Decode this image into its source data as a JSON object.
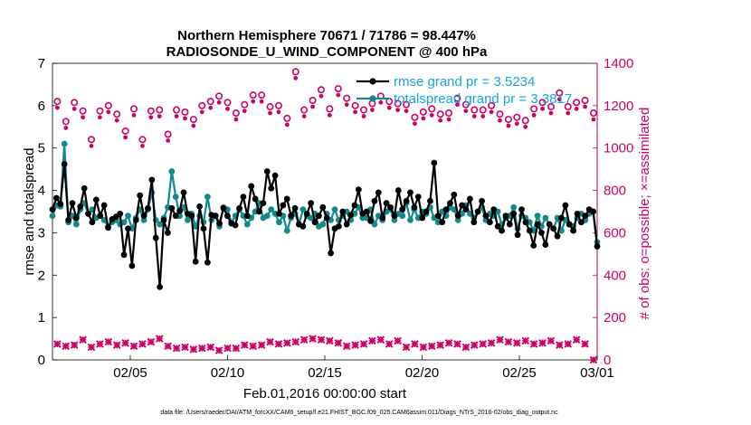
{
  "chart_data": {
    "type": "line",
    "title_line1": "Northern Hemisphere 70671 / 71786 = 98.447%",
    "title_line2": "RADIOSONDE_U_WIND_COMPONENT @ 400 hPa",
    "xlabel": "Feb.01,2016 00:00:00 start",
    "ylabel": "rmse and totalspread",
    "y2label": "# of obs: o=possible; ×=assimilated",
    "footer": "data file: /Users/raeder/DAI/ATM_forcXX/CAM6_setup/f.e21.FHIST_BGC.f09_025.CAM6assim.011/Diags_NTrS_2016-02/obs_diag_output.nc",
    "xlim": [
      0,
      28
    ],
    "ylim": [
      0,
      7
    ],
    "y2lim": [
      0,
      1400
    ],
    "x_ticks": [
      4,
      9,
      14,
      19,
      24,
      28
    ],
    "x_tick_labels": [
      "02/05",
      "02/10",
      "02/15",
      "02/20",
      "02/25",
      "03/01"
    ],
    "y_ticks": [
      "0",
      "1",
      "2",
      "3",
      "4",
      "5",
      "6",
      "7"
    ],
    "y2_ticks": [
      "0",
      "200",
      "400",
      "600",
      "800",
      "1000",
      "1200",
      "1400"
    ],
    "grid": false,
    "legend_position": "top-right",
    "colors": {
      "rmse": "#000000",
      "spread": "#128a8a",
      "obs": "#cc0066",
      "legend_text": "#1aa3e0"
    },
    "series": [
      {
        "name": "rmse grand pr = 3.5234",
        "axis": "left",
        "values": [
          3.55,
          3.82,
          3.68,
          4.62,
          3.3,
          3.7,
          3.35,
          3.62,
          4.05,
          3.45,
          3.25,
          3.78,
          3.4,
          3.65,
          3.12,
          3.32,
          3.38,
          3.45,
          2.48,
          3.1,
          2.22,
          3.3,
          3.88,
          3.4,
          3.58,
          4.25,
          2.88,
          1.72,
          3.3,
          3.0,
          3.58,
          3.4,
          3.52,
          3.95,
          3.45,
          3.4,
          2.32,
          3.62,
          3.1,
          2.3,
          3.42,
          3.4,
          3.22,
          3.58,
          3.4,
          3.22,
          3.18,
          3.58,
          3.85,
          3.4,
          4.1,
          3.8,
          3.5,
          3.7,
          4.45,
          4.05,
          4.35,
          3.45,
          3.65,
          3.8,
          3.4,
          3.58,
          3.2,
          3.15,
          3.45,
          3.7,
          3.25,
          3.4,
          3.6,
          3.35,
          2.52,
          3.1,
          3.15,
          3.5,
          3.2,
          3.42,
          3.65,
          4.02,
          3.45,
          3.5,
          3.28,
          3.75,
          3.95,
          3.35,
          3.7,
          3.6,
          3.4,
          4.0,
          3.55,
          3.75,
          3.95,
          3.6,
          3.85,
          3.35,
          3.5,
          3.75,
          4.65,
          3.4,
          3.25,
          3.55,
          3.7,
          3.9,
          3.4,
          3.65,
          3.55,
          3.8,
          3.25,
          3.5,
          3.75,
          3.4,
          3.25,
          3.55,
          3.15,
          3.05,
          3.4,
          3.2,
          3.45,
          2.95,
          3.55,
          3.25,
          3.05,
          2.7,
          3.2,
          3.0,
          2.72,
          3.2,
          3.1,
          2.92,
          3.35,
          3.65,
          3.2,
          3.05,
          3.45,
          3.25,
          3.4,
          3.55,
          3.5,
          2.68
        ]
      },
      {
        "name": "totalspread grand pr = 3.3817",
        "axis": "left",
        "values": [
          3.4,
          3.65,
          3.62,
          5.1,
          3.25,
          3.4,
          3.2,
          3.55,
          3.7,
          3.45,
          3.55,
          3.35,
          3.4,
          3.3,
          3.15,
          3.25,
          3.3,
          3.2,
          3.25,
          3.4,
          3.1,
          3.35,
          3.55,
          3.3,
          3.55,
          3.95,
          3.3,
          3.2,
          3.35,
          3.6,
          4.45,
          3.85,
          3.4,
          3.6,
          3.3,
          3.45,
          3.15,
          3.4,
          3.25,
          3.85,
          3.3,
          3.4,
          3.15,
          3.6,
          3.55,
          3.25,
          3.4,
          3.55,
          3.4,
          3.2,
          3.35,
          3.5,
          3.7,
          3.35,
          3.4,
          3.55,
          3.45,
          3.25,
          3.4,
          3.05,
          3.35,
          3.45,
          3.2,
          3.55,
          3.4,
          3.35,
          3.45,
          3.15,
          3.2,
          3.45,
          3.3,
          3.55,
          3.3,
          3.4,
          3.5,
          3.3,
          3.45,
          3.6,
          3.35,
          3.35,
          3.55,
          3.2,
          3.4,
          3.3,
          3.5,
          3.55,
          3.3,
          3.45,
          3.4,
          3.7,
          3.3,
          3.55,
          3.35,
          3.5,
          3.45,
          3.6,
          3.35,
          3.25,
          3.5,
          3.4,
          3.6,
          3.55,
          3.3,
          3.45,
          3.65,
          3.45,
          3.35,
          3.5,
          3.6,
          3.3,
          3.45,
          3.4,
          3.5,
          3.2,
          3.35,
          3.4,
          3.6,
          3.1,
          3.4,
          3.35,
          3.25,
          3.05,
          3.4,
          3.15,
          3.35,
          3.2,
          3.1,
          3.35,
          3.05,
          3.3,
          3.2,
          3.15,
          3.35,
          3.45,
          3.3,
          3.45,
          3.5,
          2.78
        ]
      },
      {
        "name": "possible obs",
        "axis": "right",
        "marker": "circle",
        "values": [
          1220,
          1125,
          1215,
          1175,
          1040,
          1175,
          1200,
          1160,
          1080,
          1185,
          1040,
          1175,
          1180,
          1065,
          1180,
          1170,
          1135,
          1200,
          1220,
          1245,
          1215,
          1165,
          1205,
          1250,
          1250,
          1195,
          1200,
          1140,
          1360,
          1180,
          1225,
          1275,
          1185,
          1280,
          1235,
          1200,
          1180,
          1210,
          1245,
          1220,
          1210,
          1205,
          1145,
          1170,
          1185,
          1160,
          1165,
          1235,
          1205,
          1180,
          1180,
          1200,
          1160,
          1135,
          1145,
          1130,
          1185,
          1215,
          1195,
          1260,
          1195,
          1215,
          1225,
          1165
        ]
      },
      {
        "name": "assimilated obs",
        "axis": "right",
        "marker": "x",
        "values": [
          75,
          65,
          70,
          95,
          60,
          75,
          85,
          70,
          80,
          65,
          75,
          85,
          100,
          65,
          55,
          60,
          50,
          55,
          60,
          45,
          55,
          55,
          70,
          65,
          70,
          85,
          75,
          80,
          85,
          95,
          100,
          95,
          90,
          80,
          65,
          70,
          75,
          90,
          95,
          75,
          90,
          60,
          75,
          60,
          65,
          70,
          80,
          75,
          60,
          70,
          75,
          80,
          95,
          85,
          80,
          90,
          75,
          80,
          90,
          70,
          75,
          95,
          75,
          0
        ]
      }
    ]
  }
}
